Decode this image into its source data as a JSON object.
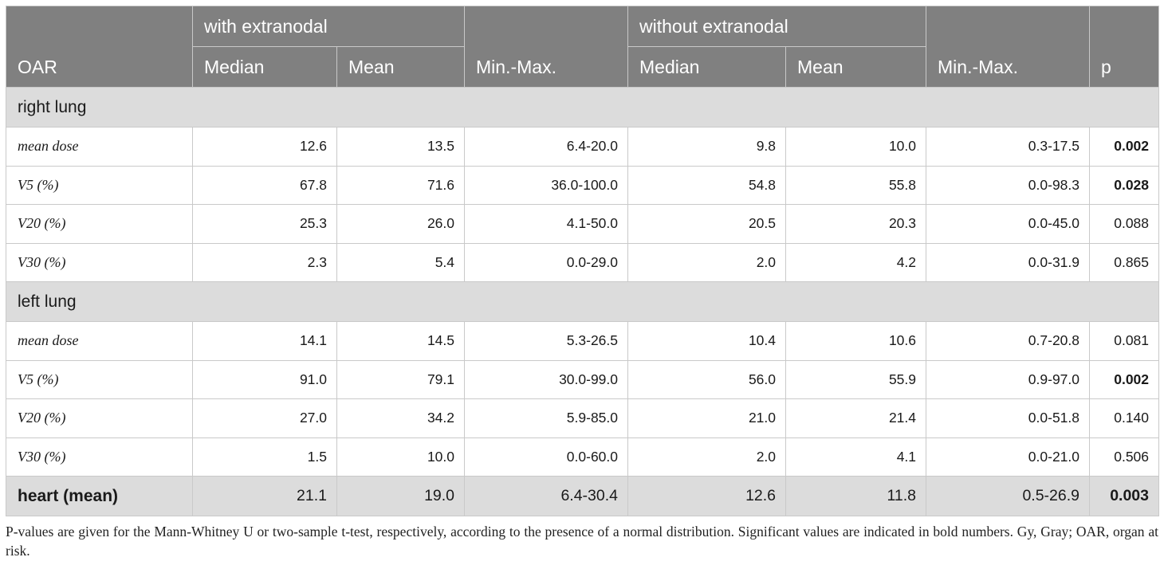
{
  "headers": {
    "oar": "OAR",
    "with_group": "with extranodal",
    "without_group": "without extranodal",
    "median": "Median",
    "mean": "Mean",
    "minmax": "Min.-Max.",
    "p": "p"
  },
  "sections": [
    {
      "title": "right lung",
      "rows": [
        {
          "label": "mean dose",
          "w_median": "12.6",
          "w_mean": "13.5",
          "w_minmax": "6.4-20.0",
          "wo_median": "9.8",
          "wo_mean": "10.0",
          "wo_minmax": "0.3-17.5",
          "p": "0.002",
          "significant": true
        },
        {
          "label": "V5 (%)",
          "w_median": "67.8",
          "w_mean": "71.6",
          "w_minmax": "36.0-100.0",
          "wo_median": "54.8",
          "wo_mean": "55.8",
          "wo_minmax": "0.0-98.3",
          "p": "0.028",
          "significant": true
        },
        {
          "label": "V20 (%)",
          "w_median": "25.3",
          "w_mean": "26.0",
          "w_minmax": "4.1-50.0",
          "wo_median": "20.5",
          "wo_mean": "20.3",
          "wo_minmax": "0.0-45.0",
          "p": "0.088",
          "significant": false
        },
        {
          "label": "V30 (%)",
          "w_median": "2.3",
          "w_mean": "5.4",
          "w_minmax": "0.0-29.0",
          "wo_median": "2.0",
          "wo_mean": "4.2",
          "wo_minmax": "0.0-31.9",
          "p": "0.865",
          "significant": false
        }
      ]
    },
    {
      "title": "left lung",
      "rows": [
        {
          "label": "mean dose",
          "w_median": "14.1",
          "w_mean": "14.5",
          "w_minmax": "5.3-26.5",
          "wo_median": "10.4",
          "wo_mean": "10.6",
          "wo_minmax": "0.7-20.8",
          "p": "0.081",
          "significant": false
        },
        {
          "label": "V5 (%)",
          "w_median": "91.0",
          "w_mean": "79.1",
          "w_minmax": "30.0-99.0",
          "wo_median": "56.0",
          "wo_mean": "55.9",
          "wo_minmax": "0.9-97.0",
          "p": "0.002",
          "significant": true
        },
        {
          "label": "V20 (%)",
          "w_median": "27.0",
          "w_mean": "34.2",
          "w_minmax": "5.9-85.0",
          "wo_median": "21.0",
          "wo_mean": "21.4",
          "wo_minmax": "0.0-51.8",
          "p": "0.140",
          "significant": false
        },
        {
          "label": "V30 (%)",
          "w_median": "1.5",
          "w_mean": "10.0",
          "w_minmax": "0.0-60.0",
          "wo_median": "2.0",
          "wo_mean": "4.1",
          "wo_minmax": "0.0-21.0",
          "p": "0.506",
          "significant": false
        }
      ]
    }
  ],
  "summary": {
    "label": "heart (mean)",
    "w_median": "21.1",
    "w_mean": "19.0",
    "w_minmax": "6.4-30.4",
    "wo_median": "12.6",
    "wo_mean": "11.8",
    "wo_minmax": "0.5-26.9",
    "p": "0.003"
  },
  "footnote": "P-values are given for the Mann-Whitney U or two-sample t-test, respectively, according to the presence of a normal distribution. Significant values are indicated in bold numbers. Gy, Gray; OAR, organ at risk.",
  "colors": {
    "header_bg": "#808080",
    "section_bg": "#dcdcdc",
    "border": "#c9c9c9"
  }
}
